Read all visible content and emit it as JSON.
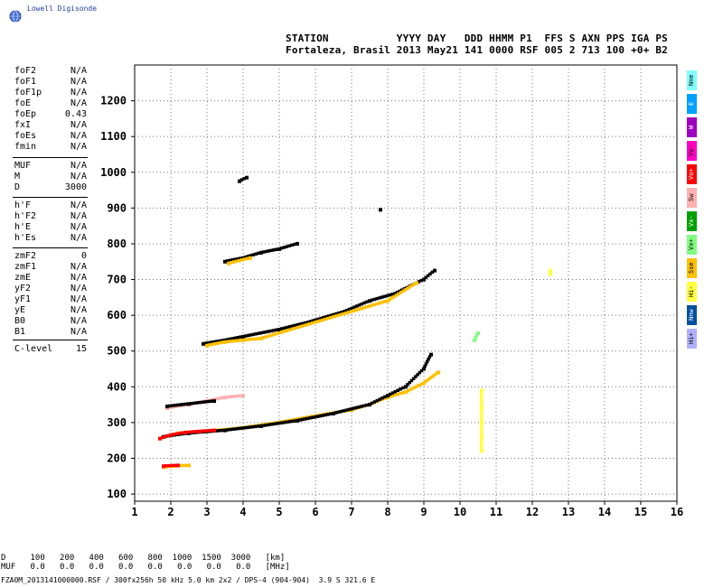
{
  "logo": {
    "text": "Lowell Digisonde",
    "icon": "globe-icon"
  },
  "header": {
    "line1": "STATION           YYYY DAY   DDD HHMM P1  FFS S AXN PPS IGA PS",
    "line2": "Fortaleza, Brasil 2013 May21 141 0000 RSF 005 2 713 100 +0+ B2"
  },
  "params": {
    "group1": [
      {
        "name": "foF2",
        "value": "N/A"
      },
      {
        "name": "foF1",
        "value": "N/A"
      },
      {
        "name": "foF1p",
        "value": "N/A"
      },
      {
        "name": "foE",
        "value": "N/A"
      },
      {
        "name": "foEp",
        "value": "0.43"
      },
      {
        "name": "fxI",
        "value": "N/A"
      },
      {
        "name": "foEs",
        "value": "N/A"
      },
      {
        "name": "fmin",
        "value": "N/A"
      }
    ],
    "group2": [
      {
        "name": "MUF",
        "value": "N/A"
      },
      {
        "name": "M",
        "value": "N/A"
      },
      {
        "name": "D",
        "value": "3000"
      }
    ],
    "group3": [
      {
        "name": "h'F",
        "value": "N/A"
      },
      {
        "name": "h'F2",
        "value": "N/A"
      },
      {
        "name": "h'E",
        "value": "N/A"
      },
      {
        "name": "h'Es",
        "value": "N/A"
      }
    ],
    "group4": [
      {
        "name": "zmF2",
        "value": "0"
      },
      {
        "name": "zmF1",
        "value": "N/A"
      },
      {
        "name": "zmE",
        "value": "N/A"
      },
      {
        "name": "yF2",
        "value": "N/A"
      },
      {
        "name": "yF1",
        "value": "N/A"
      },
      {
        "name": "yE",
        "value": "N/A"
      },
      {
        "name": "B0",
        "value": "N/A"
      },
      {
        "name": "B1",
        "value": "N/A"
      }
    ],
    "group5": [
      {
        "name": "C-level",
        "value": "15"
      }
    ]
  },
  "legend": [
    {
      "label": "Nne",
      "color": "#7fffff"
    },
    {
      "label": "E",
      "color": "#00a0ff"
    },
    {
      "label": "W",
      "color": "#a000c0"
    },
    {
      "label": "Vo-",
      "color": "#ff00c0"
    },
    {
      "label": "Vo+",
      "color": "#ff0000"
    },
    {
      "label": "Sw",
      "color": "#ffb0b0"
    },
    {
      "label": "Vx-",
      "color": "#00a000"
    },
    {
      "label": "Vx+",
      "color": "#80ff80"
    },
    {
      "label": "Sse",
      "color": "#ffc000"
    },
    {
      "label": "Hi-",
      "color": "#ffff40"
    },
    {
      "label": "Nnw",
      "color": "#0050a0"
    },
    {
      "label": "Hi+",
      "color": "#b0b0ff"
    }
  ],
  "footer": {
    "row1": "D     100   200   400   600   800  1000  1500  3000   [km]",
    "row2": "MUF   0.0   0.0   0.0   0.0   0.0   0.0   0.0   0.0   [MHz]",
    "file": "FZA0M_2013141000000.RSF / 300fx256h 50 kHz 5.0 km 2x2 / DPS-4 (904-904)  3.9 S 321.6 E"
  },
  "chart_data": {
    "type": "scatter",
    "xlim": [
      1,
      16
    ],
    "ylim": [
      80,
      1300
    ],
    "x_ticks": [
      1,
      2,
      3,
      4,
      5,
      6,
      7,
      8,
      9,
      10,
      11,
      12,
      13,
      14,
      15,
      16
    ],
    "y_ticks": [
      100,
      200,
      300,
      400,
      500,
      600,
      700,
      800,
      900,
      1000,
      1100,
      1200
    ],
    "grid": true,
    "traces": [
      {
        "color": "#ffc000",
        "points": [
          [
            2.2,
            270
          ],
          [
            3,
            275
          ],
          [
            4,
            285
          ],
          [
            5,
            300
          ],
          [
            6,
            318
          ],
          [
            7,
            335
          ],
          [
            7.5,
            350
          ],
          [
            8,
            370
          ],
          [
            8.5,
            385
          ],
          [
            9,
            410
          ],
          [
            9.4,
            440
          ]
        ]
      },
      {
        "color": "#000000",
        "points": [
          [
            1.8,
            260
          ],
          [
            2.5,
            270
          ],
          [
            3.5,
            278
          ],
          [
            4.5,
            290
          ],
          [
            5.5,
            305
          ],
          [
            6.5,
            325
          ],
          [
            7.5,
            350
          ],
          [
            8,
            375
          ],
          [
            8.5,
            400
          ],
          [
            9,
            450
          ],
          [
            9.2,
            490
          ]
        ]
      },
      {
        "color": "#ff0000",
        "points": [
          [
            1.7,
            255
          ],
          [
            2,
            265
          ],
          [
            2.4,
            272
          ],
          [
            2.8,
            275
          ],
          [
            3.2,
            278
          ]
        ]
      },
      {
        "color": "#000000",
        "points": [
          [
            2.9,
            520
          ],
          [
            3.5,
            530
          ],
          [
            4,
            540
          ],
          [
            5,
            560
          ],
          [
            5.8,
            580
          ],
          [
            6.8,
            610
          ],
          [
            7.5,
            640
          ],
          [
            8.2,
            660
          ],
          [
            9,
            700
          ],
          [
            9.3,
            725
          ]
        ]
      },
      {
        "color": "#ffc000",
        "points": [
          [
            3,
            515
          ],
          [
            3.5,
            525
          ],
          [
            4,
            530
          ],
          [
            4.5,
            535
          ],
          [
            8,
            640
          ],
          [
            8.8,
            690
          ]
        ]
      },
      {
        "color": "#000000",
        "points": [
          [
            3.5,
            750
          ],
          [
            4,
            760
          ],
          [
            4.5,
            775
          ],
          [
            5,
            785
          ],
          [
            5.5,
            800
          ]
        ]
      },
      {
        "color": "#ffc000",
        "points": [
          [
            3.6,
            745
          ],
          [
            4.2,
            760
          ]
        ]
      },
      {
        "color": "#ffb0b0",
        "points": [
          [
            1.9,
            340
          ],
          [
            2.5,
            350
          ],
          [
            3,
            360
          ],
          [
            3.5,
            370
          ],
          [
            4,
            375
          ]
        ]
      },
      {
        "color": "#000000",
        "points": [
          [
            1.9,
            345
          ],
          [
            2.5,
            352
          ],
          [
            3.2,
            360
          ]
        ]
      },
      {
        "color": "#ffc000",
        "points": [
          [
            1.8,
            175
          ],
          [
            2.1,
            178
          ],
          [
            2.5,
            180
          ]
        ]
      },
      {
        "color": "#ff0000",
        "points": [
          [
            1.8,
            178
          ],
          [
            2.2,
            180
          ]
        ]
      },
      {
        "color": "#000000",
        "points": [
          [
            3.9,
            975
          ],
          [
            4.1,
            985
          ]
        ]
      },
      {
        "color": "#000000",
        "points": [
          [
            7.8,
            895
          ]
        ]
      },
      {
        "color": "#ffff40",
        "points": [
          [
            10.6,
            220
          ],
          [
            10.6,
            260
          ],
          [
            10.6,
            300
          ],
          [
            10.6,
            340
          ],
          [
            10.6,
            390
          ]
        ]
      },
      {
        "color": "#ffff40",
        "points": [
          [
            12.5,
            715
          ],
          [
            12.5,
            725
          ]
        ]
      },
      {
        "color": "#80ff80",
        "points": [
          [
            10.4,
            530
          ],
          [
            10.5,
            550
          ]
        ]
      }
    ]
  }
}
